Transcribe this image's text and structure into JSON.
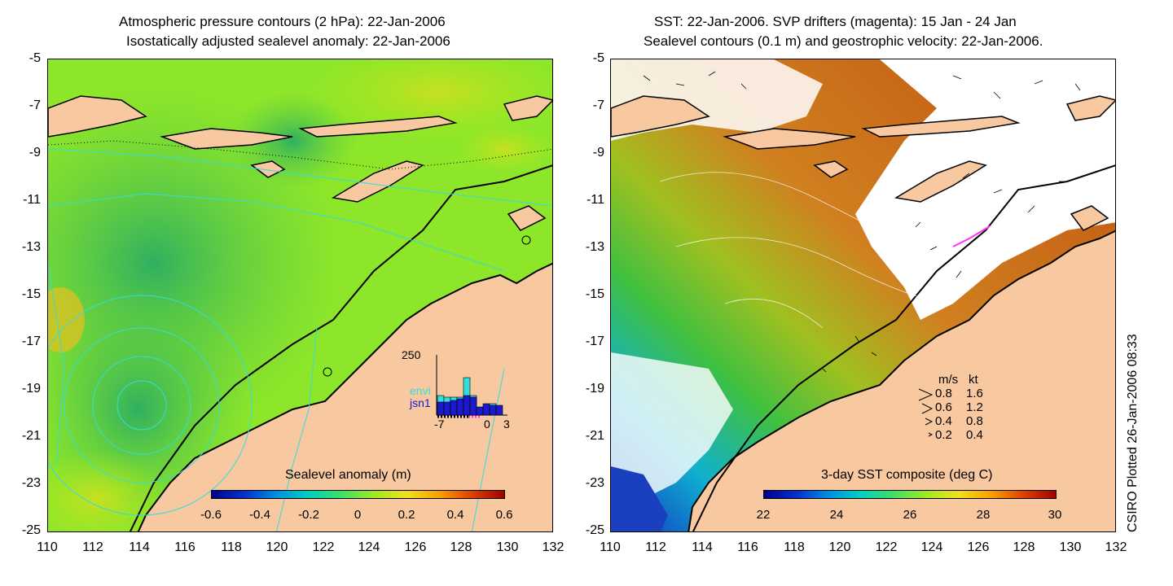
{
  "left": {
    "title_line1": "Atmospheric pressure contours (2 hPa): 22-Jan-2006",
    "title_line2": "Isostatically adjusted sealevel anomaly: 22-Jan-2006",
    "colorbar_title": "Sealevel anomaly (m)",
    "colorbar_ticks": [
      "-0.6",
      "-0.4",
      "-0.2",
      "0",
      "0.2",
      "0.4",
      "0.6"
    ],
    "inset": {
      "ymax_label": "250",
      "series": [
        "envi",
        "jsn1"
      ],
      "series_colors": [
        "#33dddd",
        "#1a1acc"
      ],
      "x_ticks": [
        "-7",
        "0",
        "3"
      ]
    }
  },
  "right": {
    "title_line1": "SST: 22-Jan-2006. SVP drifters (magenta): 15 Jan - 24 Jan",
    "title_line2": "Sealevel contours (0.1 m) and geostrophic velocity: 22-Jan-2006.",
    "colorbar_title": "3-day SST composite (deg C)",
    "colorbar_ticks": [
      "22",
      "24",
      "26",
      "28",
      "30"
    ],
    "velocity_legend": {
      "header_ms": "m/s",
      "header_kt": "kt",
      "rows": [
        {
          "ms": "0.8",
          "kt": "1.6"
        },
        {
          "ms": "0.6",
          "kt": "1.2"
        },
        {
          "ms": "0.4",
          "kt": "0.8"
        },
        {
          "ms": "0.2",
          "kt": "0.4"
        }
      ]
    }
  },
  "axes": {
    "y_ticks": [
      "-5",
      "-7",
      "-9",
      "-11",
      "-13",
      "-15",
      "-17",
      "-19",
      "-21",
      "-23",
      "-25"
    ],
    "x_ticks": [
      "110",
      "112",
      "114",
      "116",
      "118",
      "120",
      "122",
      "124",
      "126",
      "128",
      "130",
      "132"
    ]
  },
  "credit": "CSIRO Plotted 26-Jan-2006 08:33",
  "colors": {
    "land": "#f8c8a0",
    "ocean_left": "#88ee22",
    "ocean_right": "#d07a20"
  }
}
